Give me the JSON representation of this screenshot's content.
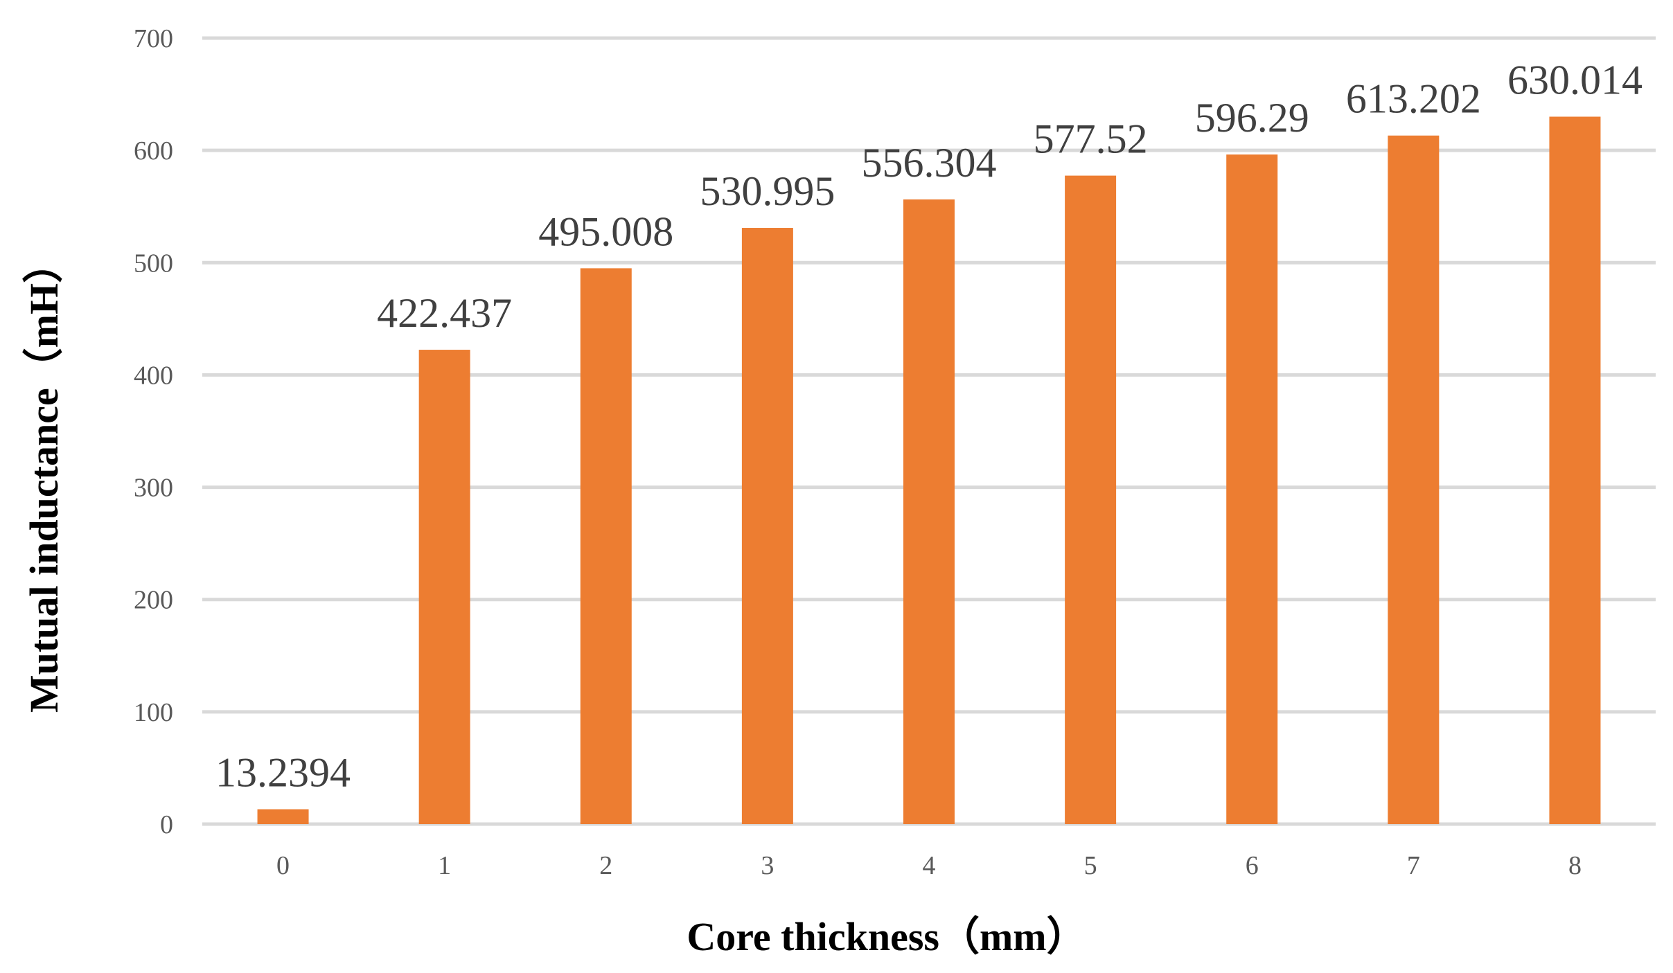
{
  "chart_data": {
    "type": "bar",
    "categories": [
      "0",
      "1",
      "2",
      "3",
      "4",
      "5",
      "6",
      "7",
      "8"
    ],
    "values": [
      13.2394,
      422.437,
      495.008,
      530.995,
      556.304,
      577.52,
      596.29,
      613.202,
      630.014
    ],
    "data_labels": [
      "13.2394",
      "422.437",
      "495.008",
      "530.995",
      "556.304",
      "577.52",
      "596.29",
      "613.202",
      "630.014"
    ],
    "title": "",
    "xlabel": "Core thickness（mm）",
    "ylabel": "Mutual inductance（mH）",
    "ylim": [
      0,
      700
    ],
    "yticks": [
      0,
      100,
      200,
      300,
      400,
      500,
      600,
      700
    ],
    "grid": true,
    "legend": "none",
    "bar_color": "#ED7D31",
    "grid_color": "#D9D9D9"
  }
}
